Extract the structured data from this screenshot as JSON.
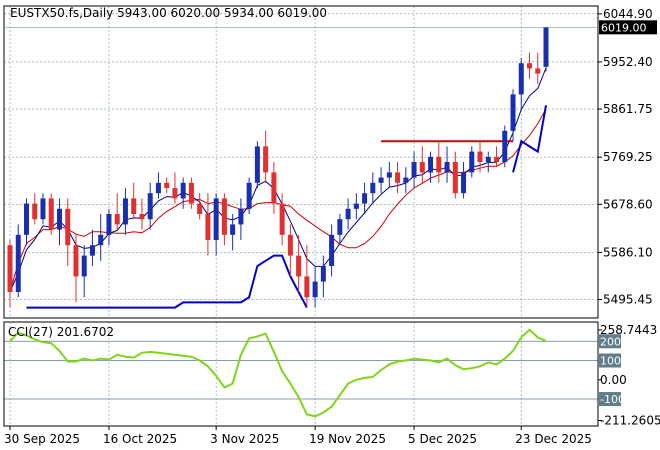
{
  "colors": {
    "background": "#ffffff",
    "grid": "#7a9aa5",
    "frame": "#000000",
    "up_candle": "#1a2fb0",
    "down_candle": "#e03030",
    "doji": "#22aa22",
    "ma_fast": "#00008b",
    "ma_slow": "#cc0000",
    "red_level": "#cc0000",
    "blue_level": "#0000cc",
    "cci_line": "#7fd51a",
    "cci_ref": "#607e8a",
    "price_tag_bg": "#000000",
    "cci_tag_bg": "#607e8a"
  },
  "chart_data": [
    {
      "type": "candlestick",
      "title": "EUSTX50.fs,Daily  5943.00 6020.00 5934.00 6019.00",
      "ylim": [
        5460,
        6060
      ],
      "price_ticks": [
        6044.9,
        5952.4,
        5861.75,
        5769.25,
        5678.6,
        5586.1,
        5495.45
      ],
      "price_tick_labels": [
        "6044.90",
        "5952.40",
        "5861.75",
        "5769.25",
        "5678.60",
        "5586.10",
        "5495.45"
      ],
      "last_price_label": "6019.00",
      "last_price": 6019.0,
      "x_labels": [
        "30 Sep 2025",
        "16 Oct 2025",
        "3 Nov 2025",
        "19 Nov 2025",
        "5 Dec 2025",
        "23 Dec 2025"
      ],
      "x_label_bars": [
        0,
        12,
        25,
        37,
        49,
        62
      ],
      "candles": [
        [
          5600,
          5610,
          5480,
          5510
        ],
        [
          5510,
          5640,
          5500,
          5620
        ],
        [
          5620,
          5690,
          5600,
          5680
        ],
        [
          5680,
          5700,
          5640,
          5650
        ],
        [
          5650,
          5700,
          5640,
          5690
        ],
        [
          5690,
          5700,
          5620,
          5630
        ],
        [
          5630,
          5690,
          5600,
          5670
        ],
        [
          5670,
          5690,
          5560,
          5600
        ],
        [
          5600,
          5620,
          5490,
          5540
        ],
        [
          5540,
          5600,
          5500,
          5580
        ],
        [
          5580,
          5630,
          5560,
          5600
        ],
        [
          5600,
          5660,
          5570,
          5620
        ],
        [
          5620,
          5670,
          5600,
          5660
        ],
        [
          5660,
          5700,
          5630,
          5640
        ],
        [
          5640,
          5710,
          5620,
          5690
        ],
        [
          5690,
          5720,
          5650,
          5660
        ],
        [
          5660,
          5690,
          5630,
          5650
        ],
        [
          5650,
          5720,
          5630,
          5700
        ],
        [
          5700,
          5740,
          5690,
          5720
        ],
        [
          5720,
          5730,
          5700,
          5710
        ],
        [
          5710,
          5740,
          5680,
          5690
        ],
        [
          5690,
          5730,
          5670,
          5720
        ],
        [
          5720,
          5730,
          5670,
          5680
        ],
        [
          5680,
          5700,
          5650,
          5660
        ],
        [
          5660,
          5700,
          5580,
          5610
        ],
        [
          5610,
          5700,
          5580,
          5690
        ],
        [
          5690,
          5700,
          5600,
          5620
        ],
        [
          5620,
          5660,
          5590,
          5640
        ],
        [
          5640,
          5690,
          5610,
          5670
        ],
        [
          5670,
          5730,
          5660,
          5720
        ],
        [
          5720,
          5800,
          5710,
          5790
        ],
        [
          5790,
          5820,
          5720,
          5740
        ],
        [
          5740,
          5760,
          5660,
          5680
        ],
        [
          5680,
          5700,
          5600,
          5620
        ],
        [
          5620,
          5640,
          5540,
          5580
        ],
        [
          5580,
          5620,
          5510,
          5540
        ],
        [
          5540,
          5600,
          5480,
          5500
        ],
        [
          5500,
          5560,
          5480,
          5530
        ],
        [
          5530,
          5580,
          5500,
          5560
        ],
        [
          5560,
          5640,
          5540,
          5620
        ],
        [
          5620,
          5660,
          5600,
          5650
        ],
        [
          5650,
          5690,
          5630,
          5670
        ],
        [
          5670,
          5700,
          5650,
          5680
        ],
        [
          5680,
          5720,
          5660,
          5700
        ],
        [
          5700,
          5740,
          5680,
          5720
        ],
        [
          5720,
          5750,
          5700,
          5730
        ],
        [
          5730,
          5760,
          5710,
          5740
        ],
        [
          5740,
          5760,
          5700,
          5720
        ],
        [
          5720,
          5750,
          5700,
          5730
        ],
        [
          5730,
          5780,
          5710,
          5760
        ],
        [
          5760,
          5790,
          5720,
          5740
        ],
        [
          5740,
          5780,
          5720,
          5770
        ],
        [
          5770,
          5800,
          5720,
          5740
        ],
        [
          5740,
          5790,
          5720,
          5760
        ],
        [
          5760,
          5780,
          5690,
          5700
        ],
        [
          5700,
          5760,
          5690,
          5740
        ],
        [
          5740,
          5790,
          5730,
          5780
        ],
        [
          5780,
          5800,
          5740,
          5760
        ],
        [
          5760,
          5780,
          5740,
          5770
        ],
        [
          5770,
          5790,
          5750,
          5760
        ],
        [
          5760,
          5830,
          5750,
          5820
        ],
        [
          5820,
          5900,
          5800,
          5890
        ],
        [
          5890,
          5960,
          5860,
          5950
        ],
        [
          5950,
          5970,
          5920,
          5940
        ],
        [
          5940,
          5970,
          5910,
          5930
        ],
        [
          5943,
          6020,
          5934,
          6019
        ]
      ]
    },
    {
      "type": "line",
      "title": "CCI(27) 201.6702",
      "ylim": [
        -240,
        300
      ],
      "ticks": [
        258.7443,
        200,
        100,
        0.0,
        -100,
        -211.2605
      ],
      "tick_labels": [
        "258.7443",
        "200",
        "100",
        "0.00",
        "-100",
        "-211.2605"
      ],
      "ref_levels": [
        200,
        100,
        -100
      ],
      "values": [
        200,
        245,
        230,
        210,
        195,
        190,
        150,
        95,
        95,
        110,
        100,
        110,
        105,
        130,
        120,
        115,
        140,
        145,
        140,
        135,
        130,
        125,
        120,
        100,
        70,
        20,
        -40,
        -20,
        130,
        215,
        225,
        240,
        145,
        45,
        -20,
        -90,
        -180,
        -190,
        -170,
        -140,
        -80,
        -20,
        0,
        10,
        15,
        50,
        80,
        95,
        100,
        110,
        105,
        100,
        90,
        110,
        75,
        55,
        60,
        70,
        90,
        80,
        110,
        150,
        220,
        260,
        220,
        201.67
      ]
    }
  ]
}
